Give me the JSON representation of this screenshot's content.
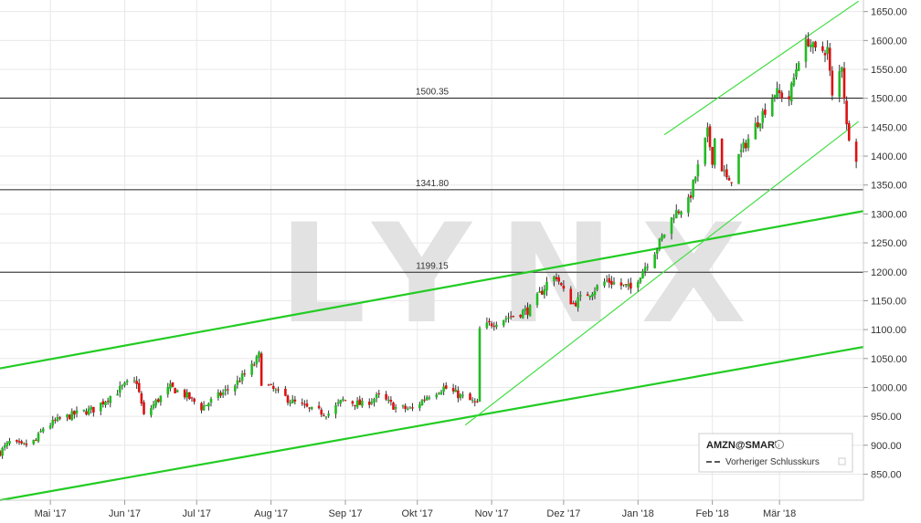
{
  "chart_data": {
    "type": "candlestick",
    "watermark": "LYNX",
    "x_range": [
      "2017-04-10",
      "2018-04-05"
    ],
    "y_range": [
      805,
      1670
    ],
    "y_ticks": [
      850,
      900,
      950,
      1000,
      1050,
      1100,
      1150,
      1200,
      1250,
      1300,
      1350,
      1400,
      1450,
      1500,
      1550,
      1600,
      1650
    ],
    "y_tick_labels": [
      "850.00",
      "900.00",
      "950.00",
      "1000.00",
      "1050.00",
      "1100.00",
      "1150.00",
      "1200.00",
      "1250.00",
      "1300.00",
      "1350.00",
      "1400.00",
      "1450.00",
      "1500.00",
      "1550.00",
      "1600.00",
      "1650.00"
    ],
    "x_ticks": [
      {
        "date": "2017-05-01",
        "label": "Mai '17"
      },
      {
        "date": "2017-06-01",
        "label": "Jun '17"
      },
      {
        "date": "2017-07-01",
        "label": "Jul '17"
      },
      {
        "date": "2017-08-01",
        "label": "Aug '17"
      },
      {
        "date": "2017-09-01",
        "label": "Sep '17"
      },
      {
        "date": "2017-10-01",
        "label": "Okt '17"
      },
      {
        "date": "2017-11-01",
        "label": "Nov '17"
      },
      {
        "date": "2017-12-01",
        "label": "Dez '17"
      },
      {
        "date": "2018-01-01",
        "label": "Jan '18"
      },
      {
        "date": "2018-02-01",
        "label": "Feb '18"
      },
      {
        "date": "2018-03-01",
        "label": "Mär '18"
      }
    ],
    "horizontal_lines": [
      {
        "value": 1500.35,
        "label": "1500.35"
      },
      {
        "value": 1341.8,
        "label": "1341.80"
      },
      {
        "value": 1199.15,
        "label": "1199.15"
      }
    ],
    "trend_lines": [
      {
        "from": [
          "2017-04-10",
          1033
        ],
        "to": [
          "2018-04-05",
          1305
        ],
        "color": "#22cc22",
        "width": 2.2
      },
      {
        "from": [
          "2017-04-10",
          805
        ],
        "to": [
          "2018-04-05",
          1070
        ],
        "color": "#22cc22",
        "width": 2.2
      },
      {
        "from": [
          "2017-10-21",
          935
        ],
        "to": [
          "2018-04-03",
          1460
        ],
        "color": "#44dd44",
        "width": 1.2
      },
      {
        "from": [
          "2018-01-12",
          1437
        ],
        "to": [
          "2018-04-03",
          1668
        ],
        "color": "#44dd44",
        "width": 1.2
      }
    ],
    "price_anchors": [
      [
        "2017-04-10",
        888
      ],
      [
        "2017-04-14",
        905
      ],
      [
        "2017-04-19",
        898
      ],
      [
        "2017-04-25",
        908
      ],
      [
        "2017-04-28",
        930
      ],
      [
        "2017-05-05",
        945
      ],
      [
        "2017-05-12",
        955
      ],
      [
        "2017-05-19",
        962
      ],
      [
        "2017-05-26",
        985
      ],
      [
        "2017-06-02",
        1006
      ],
      [
        "2017-06-06",
        1010
      ],
      [
        "2017-06-09",
        950
      ],
      [
        "2017-06-14",
        975
      ],
      [
        "2017-06-20",
        1000
      ],
      [
        "2017-06-27",
        985
      ],
      [
        "2017-07-03",
        965
      ],
      [
        "2017-07-10",
        985
      ],
      [
        "2017-07-17",
        1005
      ],
      [
        "2017-07-25",
        1040
      ],
      [
        "2017-07-27",
        1055
      ],
      [
        "2017-07-28",
        1010
      ],
      [
        "2017-08-04",
        990
      ],
      [
        "2017-08-10",
        975
      ],
      [
        "2017-08-18",
        960
      ],
      [
        "2017-08-25",
        955
      ],
      [
        "2017-08-31",
        978
      ],
      [
        "2017-09-08",
        970
      ],
      [
        "2017-09-15",
        985
      ],
      [
        "2017-09-22",
        965
      ],
      [
        "2017-09-29",
        962
      ],
      [
        "2017-10-05",
        985
      ],
      [
        "2017-10-12",
        1000
      ],
      [
        "2017-10-19",
        985
      ],
      [
        "2017-10-24",
        975
      ],
      [
        "2017-10-26",
        970
      ],
      [
        "2017-10-27",
        1100
      ],
      [
        "2017-11-03",
        1115
      ],
      [
        "2017-11-10",
        1125
      ],
      [
        "2017-11-17",
        1135
      ],
      [
        "2017-11-24",
        1180
      ],
      [
        "2017-11-28",
        1193
      ],
      [
        "2017-12-01",
        1165
      ],
      [
        "2017-12-05",
        1145
      ],
      [
        "2017-12-12",
        1165
      ],
      [
        "2017-12-19",
        1185
      ],
      [
        "2017-12-26",
        1175
      ],
      [
        "2017-12-29",
        1170
      ],
      [
        "2018-01-04",
        1210
      ],
      [
        "2018-01-10",
        1250
      ],
      [
        "2018-01-16",
        1300
      ],
      [
        "2018-01-22",
        1320
      ],
      [
        "2018-01-26",
        1380
      ],
      [
        "2018-01-30",
        1440
      ],
      [
        "2018-02-01",
        1395
      ],
      [
        "2018-02-02",
        1430
      ],
      [
        "2018-02-05",
        1380
      ],
      [
        "2018-02-08",
        1350
      ],
      [
        "2018-02-12",
        1400
      ],
      [
        "2018-02-20",
        1460
      ],
      [
        "2018-02-27",
        1510
      ],
      [
        "2018-03-05",
        1500
      ],
      [
        "2018-03-09",
        1570
      ],
      [
        "2018-03-13",
        1600
      ],
      [
        "2018-03-16",
        1580
      ],
      [
        "2018-03-21",
        1585
      ],
      [
        "2018-03-23",
        1500
      ],
      [
        "2018-03-27",
        1560
      ],
      [
        "2018-03-29",
        1450
      ],
      [
        "2018-04-02",
        1400
      ]
    ],
    "colors": {
      "up": "#22bb22",
      "down": "#dd1111",
      "line": "#222222",
      "trend": "#22cc22",
      "grid": "#e8e8e8"
    },
    "legend": {
      "symbol": "AMZN@SMART",
      "prev_close_label": "Vorheriger Schlusskurs",
      "position": "bottom-right"
    }
  }
}
